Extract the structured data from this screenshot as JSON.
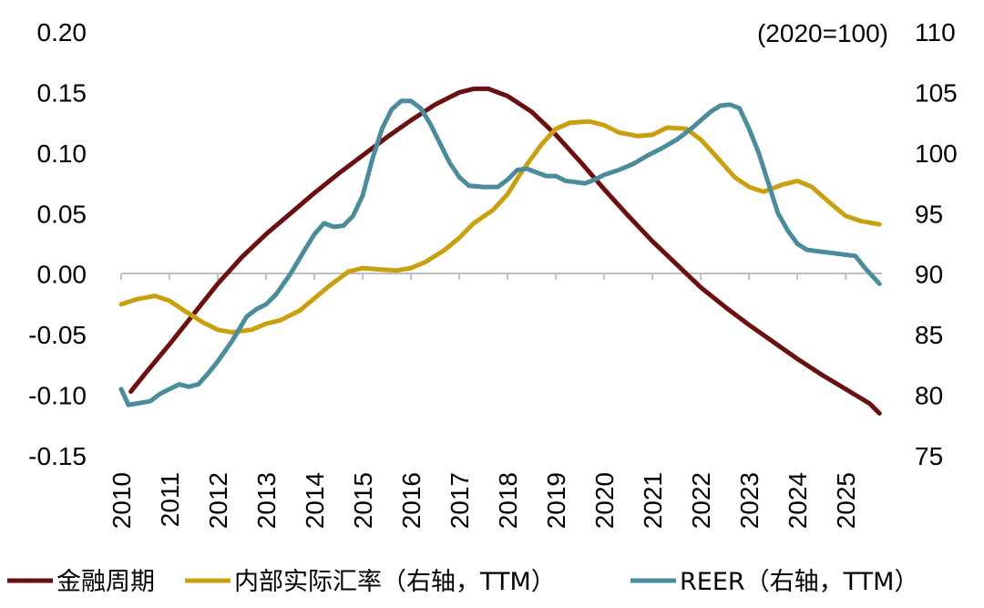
{
  "chart_data": {
    "type": "line",
    "title": "",
    "right_axis_note": "(2020=100)",
    "x_ticks": [
      "2010",
      "2011",
      "2012",
      "2013",
      "2014",
      "2015",
      "2016",
      "2017",
      "2018",
      "2019",
      "2020",
      "2021",
      "2022",
      "2023",
      "2024",
      "2025"
    ],
    "x_range": [
      2010,
      2025.75
    ],
    "left_axis": {
      "ylim": [
        -0.15,
        0.2
      ],
      "ticks": [
        "0.20",
        "0.15",
        "0.10",
        "0.05",
        "0.00",
        "-0.05",
        "-0.10",
        "-0.15"
      ],
      "tick_values": [
        0.2,
        0.15,
        0.1,
        0.05,
        0.0,
        -0.05,
        -0.1,
        -0.15
      ]
    },
    "right_axis": {
      "ylim": [
        75,
        110
      ],
      "ticks": [
        "110",
        "105",
        "100",
        "95",
        "90",
        "85",
        "80",
        "75"
      ],
      "tick_values": [
        110,
        105,
        100,
        95,
        90,
        85,
        80,
        75
      ]
    },
    "series": [
      {
        "name": "金融周期",
        "axis": "left",
        "color": "#6B0F0F",
        "points": [
          [
            2010.2,
            -0.097
          ],
          [
            2010.5,
            -0.082
          ],
          [
            2011.0,
            -0.058
          ],
          [
            2011.5,
            -0.033
          ],
          [
            2012.0,
            -0.008
          ],
          [
            2012.5,
            0.014
          ],
          [
            2013.0,
            0.033
          ],
          [
            2013.5,
            0.05
          ],
          [
            2014.0,
            0.067
          ],
          [
            2014.5,
            0.083
          ],
          [
            2015.0,
            0.098
          ],
          [
            2015.5,
            0.113
          ],
          [
            2016.0,
            0.127
          ],
          [
            2016.5,
            0.14
          ],
          [
            2017.0,
            0.15
          ],
          [
            2017.3,
            0.153
          ],
          [
            2017.6,
            0.153
          ],
          [
            2018.0,
            0.147
          ],
          [
            2018.5,
            0.134
          ],
          [
            2019.0,
            0.115
          ],
          [
            2019.5,
            0.093
          ],
          [
            2020.0,
            0.07
          ],
          [
            2020.5,
            0.048
          ],
          [
            2021.0,
            0.027
          ],
          [
            2021.5,
            0.008
          ],
          [
            2022.0,
            -0.011
          ],
          [
            2022.5,
            -0.027
          ],
          [
            2023.0,
            -0.042
          ],
          [
            2023.5,
            -0.056
          ],
          [
            2024.0,
            -0.07
          ],
          [
            2024.5,
            -0.083
          ],
          [
            2025.0,
            -0.095
          ],
          [
            2025.5,
            -0.107
          ],
          [
            2025.7,
            -0.115
          ]
        ]
      },
      {
        "name": "内部实际汇率（右轴，TTM）",
        "axis": "right",
        "color": "#C9A010",
        "points": [
          [
            2010.0,
            87.5
          ],
          [
            2010.3,
            87.9
          ],
          [
            2010.7,
            88.2
          ],
          [
            2011.0,
            87.8
          ],
          [
            2011.3,
            87.0
          ],
          [
            2011.7,
            86.0
          ],
          [
            2012.0,
            85.4
          ],
          [
            2012.3,
            85.2
          ],
          [
            2012.7,
            85.4
          ],
          [
            2013.0,
            85.9
          ],
          [
            2013.3,
            86.2
          ],
          [
            2013.7,
            87.0
          ],
          [
            2014.0,
            88.0
          ],
          [
            2014.3,
            89.0
          ],
          [
            2014.7,
            90.2
          ],
          [
            2015.0,
            90.5
          ],
          [
            2015.3,
            90.4
          ],
          [
            2015.7,
            90.3
          ],
          [
            2016.0,
            90.5
          ],
          [
            2016.3,
            91.0
          ],
          [
            2016.7,
            92.0
          ],
          [
            2017.0,
            93.0
          ],
          [
            2017.3,
            94.2
          ],
          [
            2017.7,
            95.3
          ],
          [
            2018.0,
            96.6
          ],
          [
            2018.3,
            98.5
          ],
          [
            2018.7,
            100.7
          ],
          [
            2019.0,
            102.0
          ],
          [
            2019.3,
            102.5
          ],
          [
            2019.7,
            102.6
          ],
          [
            2020.0,
            102.3
          ],
          [
            2020.3,
            101.7
          ],
          [
            2020.7,
            101.4
          ],
          [
            2021.0,
            101.5
          ],
          [
            2021.3,
            102.1
          ],
          [
            2021.7,
            102.0
          ],
          [
            2022.0,
            101.1
          ],
          [
            2022.3,
            99.8
          ],
          [
            2022.7,
            98.0
          ],
          [
            2023.0,
            97.2
          ],
          [
            2023.3,
            96.8
          ],
          [
            2023.7,
            97.4
          ],
          [
            2024.0,
            97.7
          ],
          [
            2024.3,
            97.2
          ],
          [
            2024.7,
            95.8
          ],
          [
            2025.0,
            94.8
          ],
          [
            2025.3,
            94.4
          ],
          [
            2025.7,
            94.1
          ]
        ]
      },
      {
        "name": "REER（右轴，TTM）",
        "axis": "right",
        "color": "#4A8C9C",
        "points": [
          [
            2010.0,
            80.5
          ],
          [
            2010.15,
            79.2
          ],
          [
            2010.3,
            79.3
          ],
          [
            2010.6,
            79.5
          ],
          [
            2010.8,
            80.1
          ],
          [
            2011.0,
            80.5
          ],
          [
            2011.2,
            80.9
          ],
          [
            2011.4,
            80.7
          ],
          [
            2011.6,
            80.9
          ],
          [
            2011.8,
            81.8
          ],
          [
            2012.0,
            82.8
          ],
          [
            2012.3,
            84.5
          ],
          [
            2012.6,
            86.5
          ],
          [
            2012.8,
            87.1
          ],
          [
            2013.0,
            87.5
          ],
          [
            2013.2,
            88.3
          ],
          [
            2013.5,
            90.0
          ],
          [
            2013.8,
            92.0
          ],
          [
            2014.0,
            93.3
          ],
          [
            2014.2,
            94.2
          ],
          [
            2014.4,
            93.9
          ],
          [
            2014.6,
            94.0
          ],
          [
            2014.8,
            94.8
          ],
          [
            2015.0,
            96.5
          ],
          [
            2015.2,
            99.5
          ],
          [
            2015.4,
            102.0
          ],
          [
            2015.6,
            103.6
          ],
          [
            2015.8,
            104.3
          ],
          [
            2016.0,
            104.3
          ],
          [
            2016.2,
            103.7
          ],
          [
            2016.4,
            102.4
          ],
          [
            2016.6,
            100.8
          ],
          [
            2016.8,
            99.2
          ],
          [
            2017.0,
            98.0
          ],
          [
            2017.2,
            97.3
          ],
          [
            2017.5,
            97.2
          ],
          [
            2017.8,
            97.2
          ],
          [
            2018.0,
            97.8
          ],
          [
            2018.2,
            98.6
          ],
          [
            2018.4,
            98.7
          ],
          [
            2018.6,
            98.4
          ],
          [
            2018.8,
            98.1
          ],
          [
            2019.0,
            98.1
          ],
          [
            2019.2,
            97.7
          ],
          [
            2019.4,
            97.6
          ],
          [
            2019.6,
            97.5
          ],
          [
            2019.8,
            97.8
          ],
          [
            2020.0,
            98.2
          ],
          [
            2020.3,
            98.6
          ],
          [
            2020.6,
            99.1
          ],
          [
            2020.9,
            99.8
          ],
          [
            2021.2,
            100.4
          ],
          [
            2021.5,
            101.1
          ],
          [
            2021.8,
            102.0
          ],
          [
            2022.0,
            102.7
          ],
          [
            2022.2,
            103.4
          ],
          [
            2022.4,
            103.9
          ],
          [
            2022.6,
            104.0
          ],
          [
            2022.8,
            103.7
          ],
          [
            2023.0,
            102.0
          ],
          [
            2023.2,
            100.0
          ],
          [
            2023.4,
            97.5
          ],
          [
            2023.6,
            95.0
          ],
          [
            2023.8,
            93.6
          ],
          [
            2024.0,
            92.5
          ],
          [
            2024.2,
            92.0
          ],
          [
            2024.4,
            91.9
          ],
          [
            2024.6,
            91.8
          ],
          [
            2024.8,
            91.7
          ],
          [
            2025.0,
            91.6
          ],
          [
            2025.2,
            91.5
          ],
          [
            2025.4,
            90.5
          ],
          [
            2025.7,
            89.2
          ]
        ]
      }
    ],
    "legend_position": "bottom"
  }
}
